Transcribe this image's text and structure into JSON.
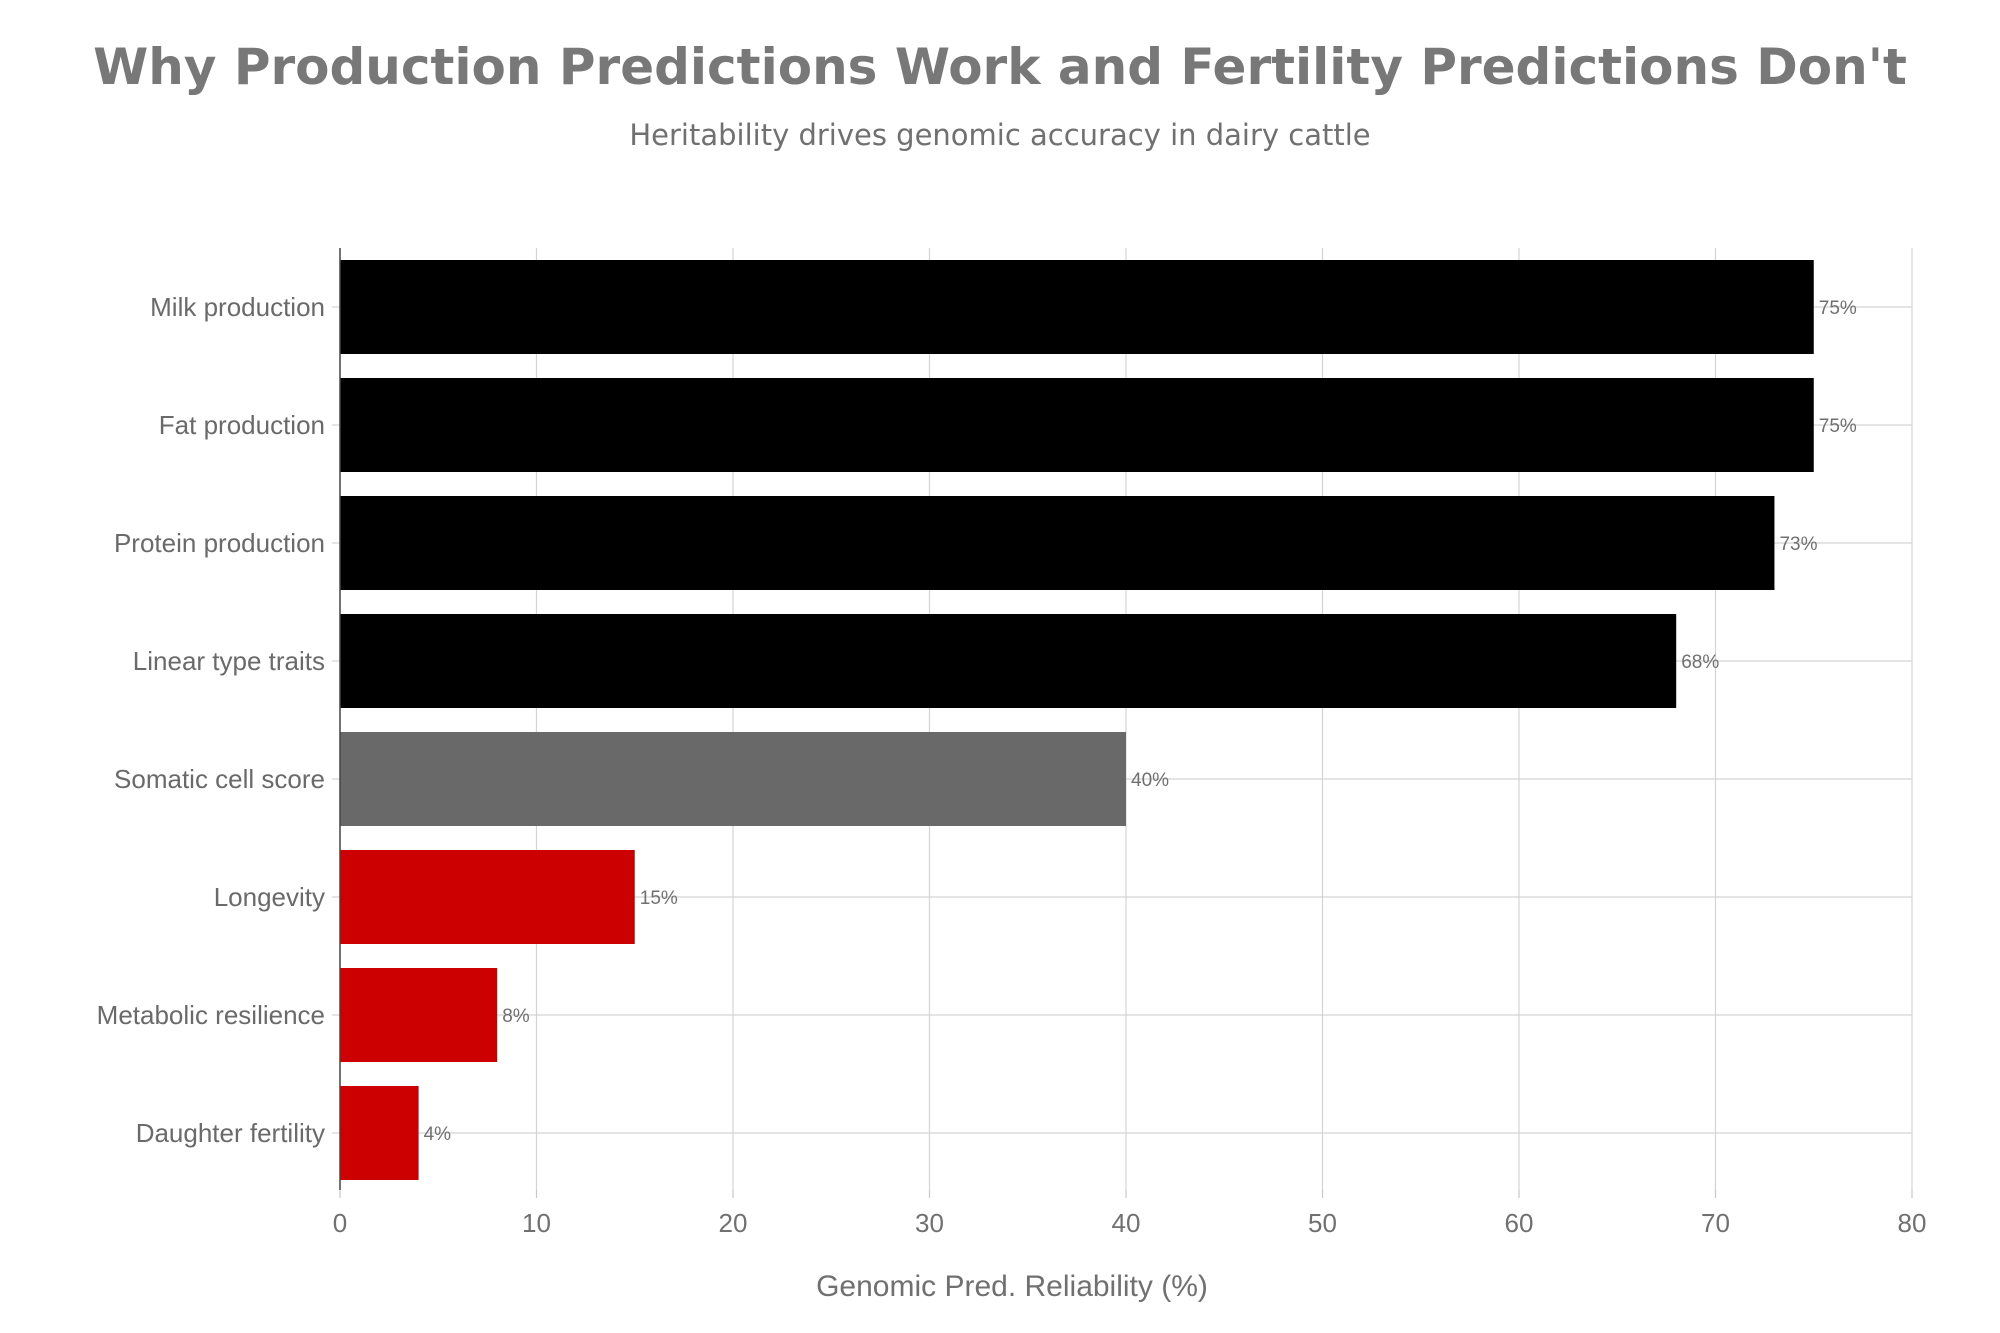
{
  "title": "Why Production Predictions Work and Fertility Predictions Don't",
  "subtitle": "Heritability drives genomic accuracy in dairy cattle",
  "chart_data": {
    "type": "bar",
    "orientation": "horizontal",
    "categories": [
      "Milk production",
      "Fat production",
      "Protein production",
      "Linear type traits",
      "Somatic cell score",
      "Longevity",
      "Metabolic resilience",
      "Daughter fertility"
    ],
    "values": [
      75,
      75,
      73,
      68,
      40,
      15,
      8,
      4
    ],
    "value_labels": [
      "75%",
      "75%",
      "73%",
      "68%",
      "40%",
      "15%",
      "8%",
      "4%"
    ],
    "bar_colors": [
      "#000000",
      "#000000",
      "#000000",
      "#000000",
      "#696969",
      "#cc0000",
      "#cc0000",
      "#cc0000"
    ],
    "xlabel": "Genomic Pred. Reliability (%)",
    "ylabel": "",
    "xlim": [
      0,
      80
    ],
    "xticks": [
      0,
      10,
      20,
      30,
      40,
      50,
      60,
      70,
      80
    ],
    "grid": true,
    "legend": "none"
  }
}
